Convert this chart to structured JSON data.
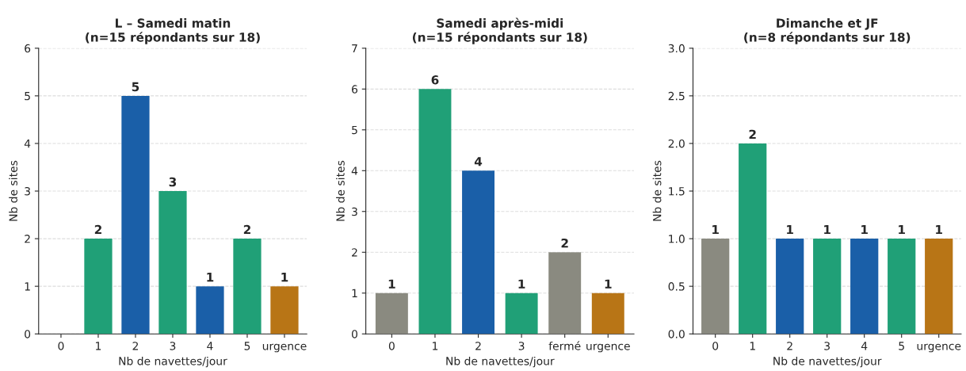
{
  "chart_data": [
    {
      "type": "bar",
      "title": "L – Samedi matin\n(n=15 répondants sur 18)",
      "xlabel": "Nb de navettes/jour",
      "ylabel": "Nb de sites",
      "categories": [
        "0",
        "1",
        "2",
        "3",
        "4",
        "5",
        "urgence"
      ],
      "values": [
        0,
        2,
        5,
        3,
        1,
        2,
        1
      ],
      "colors": [
        "#8a8a80",
        "#20a077",
        "#1a5fa8",
        "#20a077",
        "#1a5fa8",
        "#20a077",
        "#b87516"
      ],
      "value_labels": [
        null,
        "2",
        "5",
        "3",
        "1",
        "2",
        "1"
      ],
      "ylim": [
        0,
        6
      ],
      "yticks": [
        0,
        1,
        2,
        3,
        4,
        5,
        6
      ],
      "grid": "y"
    },
    {
      "type": "bar",
      "title": "Samedi après-midi\n(n=15 répondants sur 18)",
      "xlabel": "Nb de navettes/jour",
      "ylabel": "Nb de sites",
      "categories": [
        "0",
        "1",
        "2",
        "3",
        "fermé",
        "urgence"
      ],
      "values": [
        1,
        6,
        4,
        1,
        2,
        1
      ],
      "colors": [
        "#8a8a80",
        "#20a077",
        "#1a5fa8",
        "#20a077",
        "#8a8a80",
        "#b87516"
      ],
      "data_labels": true,
      "ylim": [
        0,
        7
      ],
      "yticks": [
        0,
        1,
        2,
        3,
        4,
        5,
        6,
        7
      ],
      "grid": "y"
    },
    {
      "type": "bar",
      "title": "Dimanche et JF\n(n=8 répondants sur 18)",
      "xlabel": "Nb de navettes/jour",
      "ylabel": "Nb de sites",
      "categories": [
        "0",
        "1",
        "2",
        "3",
        "4",
        "5",
        "urgence"
      ],
      "values": [
        1,
        2,
        1,
        1,
        1,
        1,
        1
      ],
      "colors": [
        "#8a8a80",
        "#20a077",
        "#1a5fa8",
        "#20a077",
        "#1a5fa8",
        "#20a077",
        "#b87516"
      ],
      "data_labels": true,
      "ylim": [
        0,
        3
      ],
      "yticks": [
        {
          "value": 0,
          "label": "0.0"
        },
        {
          "value": 0.5,
          "label": "0.5"
        },
        {
          "value": 1,
          "label": "1.0"
        },
        {
          "value": 1.5,
          "label": "1.5"
        },
        {
          "value": 2,
          "label": "2.0"
        },
        {
          "value": 2.5,
          "label": "2.5"
        },
        {
          "value": 3,
          "label": "3.0"
        }
      ],
      "grid": "y"
    }
  ]
}
